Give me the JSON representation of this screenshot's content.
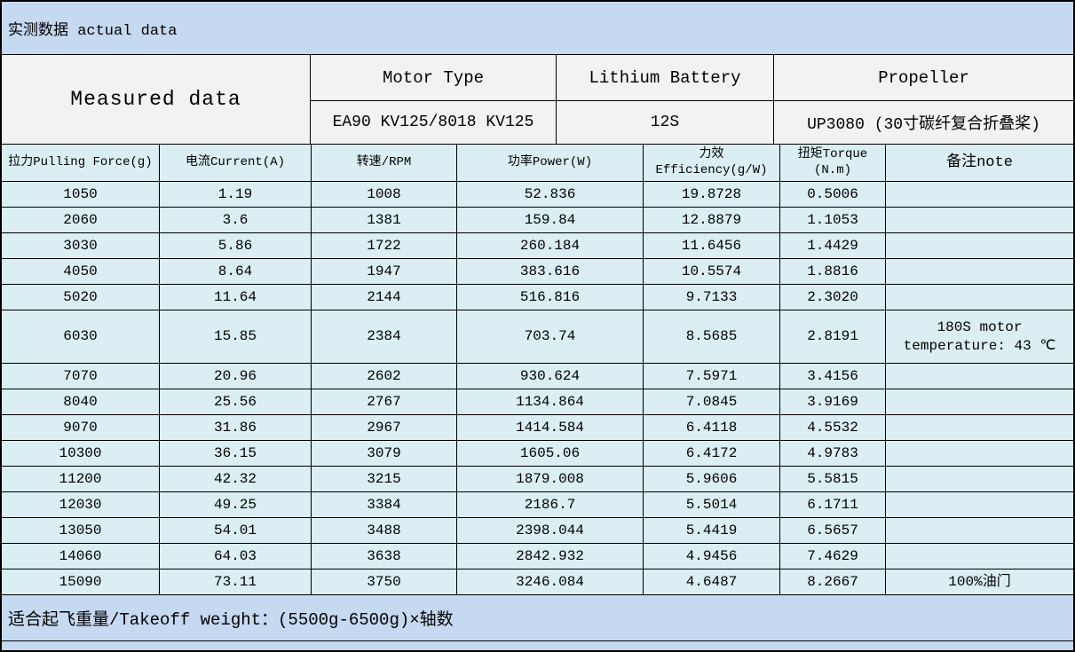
{
  "colors": {
    "band_blue": "#c5d9f1",
    "row_cyan": "#daeef3",
    "header_gray": "#f2f2f2",
    "border": "#000000"
  },
  "title_bar": {
    "text": "实测数据 actual data"
  },
  "header": {
    "measured_data": "Measured data",
    "columns": [
      {
        "label": "Motor Type",
        "value": "EA90 KV125/8018 KV125"
      },
      {
        "label": "Lithium Battery",
        "value": "12S"
      },
      {
        "label": "Propeller",
        "value": "UP3080 (30寸碳纤复合折叠桨)"
      }
    ]
  },
  "table": {
    "column_headers": [
      "拉力Pulling Force(g)",
      "电流Current(A)",
      "转速/RPM",
      "功率Power(W)",
      "力效\nEfficiency(g/W)",
      "扭矩Torque\n(N.m)",
      "备注note"
    ],
    "rows": [
      {
        "cells": [
          "1050",
          "1.19",
          "1008",
          "52.836",
          "19.8728",
          "0.5006",
          ""
        ],
        "tall": false
      },
      {
        "cells": [
          "2060",
          "3.6",
          "1381",
          "159.84",
          "12.8879",
          "1.1053",
          ""
        ],
        "tall": false
      },
      {
        "cells": [
          "3030",
          "5.86",
          "1722",
          "260.184",
          "11.6456",
          "1.4429",
          ""
        ],
        "tall": false
      },
      {
        "cells": [
          "4050",
          "8.64",
          "1947",
          "383.616",
          "10.5574",
          "1.8816",
          ""
        ],
        "tall": false
      },
      {
        "cells": [
          "5020",
          "11.64",
          "2144",
          "516.816",
          "9.7133",
          "2.3020",
          ""
        ],
        "tall": false
      },
      {
        "cells": [
          "6030",
          "15.85",
          "2384",
          "703.74",
          "8.5685",
          "2.8191",
          "180S motor temperature: 43 ℃"
        ],
        "tall": true
      },
      {
        "cells": [
          "7070",
          "20.96",
          "2602",
          "930.624",
          "7.5971",
          "3.4156",
          ""
        ],
        "tall": false
      },
      {
        "cells": [
          "8040",
          "25.56",
          "2767",
          "1134.864",
          "7.0845",
          "3.9169",
          ""
        ],
        "tall": false
      },
      {
        "cells": [
          "9070",
          "31.86",
          "2967",
          "1414.584",
          "6.4118",
          "4.5532",
          ""
        ],
        "tall": false
      },
      {
        "cells": [
          "10300",
          "36.15",
          "3079",
          "1605.06",
          "6.4172",
          "4.9783",
          ""
        ],
        "tall": false
      },
      {
        "cells": [
          "11200",
          "42.32",
          "3215",
          "1879.008",
          "5.9606",
          "5.5815",
          ""
        ],
        "tall": false
      },
      {
        "cells": [
          "12030",
          "49.25",
          "3384",
          "2186.7",
          "5.5014",
          "6.1711",
          ""
        ],
        "tall": false
      },
      {
        "cells": [
          "13050",
          "54.01",
          "3488",
          "2398.044",
          "5.4419",
          "6.5657",
          ""
        ],
        "tall": false
      },
      {
        "cells": [
          "14060",
          "64.03",
          "3638",
          "2842.932",
          "4.9456",
          "7.4629",
          ""
        ],
        "tall": false
      },
      {
        "cells": [
          "15090",
          "73.11",
          "3750",
          "3246.084",
          "4.6487",
          "8.2667",
          "100%油门"
        ],
        "tall": false
      }
    ]
  },
  "footer": {
    "text": "适合起飞重量/Takeoff weight：(5500g-6500g)×轴数"
  }
}
